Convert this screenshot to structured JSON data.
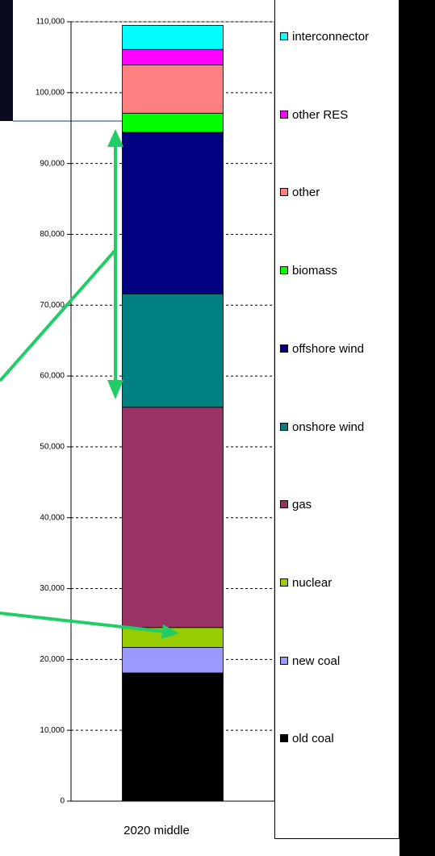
{
  "chart_data": {
    "type": "stacked_bar",
    "categories": [
      "2020 middle"
    ],
    "series": [
      {
        "name": "old coal",
        "color": "#000000",
        "values": [
          18100
        ]
      },
      {
        "name": "new coal",
        "color": "#9999ff",
        "values": [
          3600
        ]
      },
      {
        "name": "nuclear",
        "color": "#99cc00",
        "values": [
          2800
        ]
      },
      {
        "name": "gas",
        "color": "#993366",
        "values": [
          31100
        ]
      },
      {
        "name": "onshore wind",
        "color": "#008080",
        "values": [
          16000
        ]
      },
      {
        "name": "offshore wind",
        "color": "#000080",
        "values": [
          22800
        ]
      },
      {
        "name": "biomass",
        "color": "#00ff00",
        "values": [
          2700
        ]
      },
      {
        "name": "other",
        "color": "#ff8080",
        "values": [
          6800
        ]
      },
      {
        "name": "other RES",
        "color": "#ff00ff",
        "values": [
          2200
        ]
      },
      {
        "name": "interconnector",
        "color": "#00ffff",
        "values": [
          3400
        ]
      }
    ],
    "ylim": [
      0,
      110000
    ],
    "yticks": [
      0,
      {
        "value": 10000,
        "label": "10,000"
      },
      {
        "value": 20000,
        "label": "20,000"
      },
      {
        "value": 30000,
        "label": "30,000"
      },
      {
        "value": 40000,
        "label": "40,000"
      },
      {
        "value": 50000,
        "label": "50,000"
      },
      {
        "value": 60000,
        "label": "60,000"
      },
      {
        "value": 70000,
        "label": "70,000"
      },
      {
        "value": 80000,
        "label": "80,000"
      },
      {
        "value": 90000,
        "label": "90,000"
      },
      {
        "value": 100000,
        "label": "100,000"
      },
      {
        "value": 110000,
        "label": "110,000"
      }
    ],
    "grid": true,
    "legend": "right"
  }
}
